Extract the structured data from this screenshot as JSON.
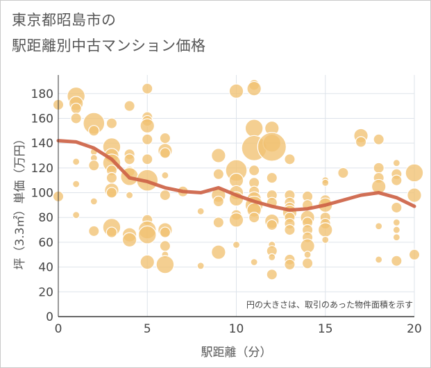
{
  "title_line1": "東京都昭島市の",
  "title_line2": "駅距離別中古マンション価格",
  "chart_data": {
    "type": "scatter",
    "xlabel": "駅距離（分）",
    "ylabel": "坪（3.3㎡）単価（万円）",
    "xlim": [
      0,
      20
    ],
    "ylim": [
      0,
      195
    ],
    "xticks": [
      0,
      5,
      10,
      15,
      20
    ],
    "yticks": [
      0,
      20,
      40,
      60,
      80,
      100,
      120,
      140,
      160,
      180
    ],
    "grid": true,
    "note": "円の大きさは、取引のあった物件面積を示す",
    "bubble_color": "#f1c172",
    "trend_color": "#cd6347",
    "points": [
      {
        "x": 0,
        "y": 171,
        "s": 2
      },
      {
        "x": 0,
        "y": 97,
        "s": 2
      },
      {
        "x": 1,
        "y": 178,
        "s": 4
      },
      {
        "x": 1,
        "y": 172,
        "s": 3
      },
      {
        "x": 1,
        "y": 168,
        "s": 2
      },
      {
        "x": 1,
        "y": 160,
        "s": 2
      },
      {
        "x": 1,
        "y": 125,
        "s": 1
      },
      {
        "x": 1,
        "y": 107,
        "s": 1
      },
      {
        "x": 1,
        "y": 82,
        "s": 1
      },
      {
        "x": 2,
        "y": 156,
        "s": 5
      },
      {
        "x": 2,
        "y": 150,
        "s": 2
      },
      {
        "x": 2,
        "y": 133,
        "s": 1
      },
      {
        "x": 2,
        "y": 128,
        "s": 1
      },
      {
        "x": 2,
        "y": 122,
        "s": 2
      },
      {
        "x": 2,
        "y": 93,
        "s": 1
      },
      {
        "x": 2,
        "y": 69,
        "s": 2
      },
      {
        "x": 3,
        "y": 156,
        "s": 2
      },
      {
        "x": 3,
        "y": 137,
        "s": 4
      },
      {
        "x": 3,
        "y": 130,
        "s": 3
      },
      {
        "x": 3,
        "y": 124,
        "s": 4
      },
      {
        "x": 3,
        "y": 118,
        "s": 2
      },
      {
        "x": 3,
        "y": 112,
        "s": 2
      },
      {
        "x": 3,
        "y": 102,
        "s": 3
      },
      {
        "x": 3,
        "y": 100,
        "s": 2
      },
      {
        "x": 3,
        "y": 72,
        "s": 4
      },
      {
        "x": 3,
        "y": 68,
        "s": 2
      },
      {
        "x": 4,
        "y": 170,
        "s": 2
      },
      {
        "x": 4,
        "y": 131,
        "s": 2
      },
      {
        "x": 4,
        "y": 127,
        "s": 2
      },
      {
        "x": 4,
        "y": 117,
        "s": 2
      },
      {
        "x": 4,
        "y": 113,
        "s": 4
      },
      {
        "x": 4,
        "y": 98,
        "s": 1
      },
      {
        "x": 4,
        "y": 66,
        "s": 3
      },
      {
        "x": 4,
        "y": 62,
        "s": 3
      },
      {
        "x": 5,
        "y": 184,
        "s": 2
      },
      {
        "x": 5,
        "y": 161,
        "s": 2
      },
      {
        "x": 5,
        "y": 158,
        "s": 2
      },
      {
        "x": 5,
        "y": 154,
        "s": 3
      },
      {
        "x": 5,
        "y": 143,
        "s": 2
      },
      {
        "x": 5,
        "y": 127,
        "s": 2
      },
      {
        "x": 5,
        "y": 110,
        "s": 5
      },
      {
        "x": 5,
        "y": 78,
        "s": 2
      },
      {
        "x": 5,
        "y": 70,
        "s": 4
      },
      {
        "x": 5,
        "y": 66,
        "s": 4
      },
      {
        "x": 5,
        "y": 44,
        "s": 3
      },
      {
        "x": 6,
        "y": 144,
        "s": 2
      },
      {
        "x": 6,
        "y": 134,
        "s": 3
      },
      {
        "x": 6,
        "y": 132,
        "s": 2
      },
      {
        "x": 6,
        "y": 114,
        "s": 1
      },
      {
        "x": 6,
        "y": 98,
        "s": 2
      },
      {
        "x": 6,
        "y": 70,
        "s": 3
      },
      {
        "x": 6,
        "y": 68,
        "s": 2
      },
      {
        "x": 6,
        "y": 57,
        "s": 2
      },
      {
        "x": 6,
        "y": 50,
        "s": 1
      },
      {
        "x": 6,
        "y": 42,
        "s": 4
      },
      {
        "x": 7,
        "y": 101,
        "s": 2
      },
      {
        "x": 8,
        "y": 85,
        "s": 1
      },
      {
        "x": 8,
        "y": 41,
        "s": 1
      },
      {
        "x": 9,
        "y": 130,
        "s": 3
      },
      {
        "x": 9,
        "y": 115,
        "s": 2
      },
      {
        "x": 9,
        "y": 98,
        "s": 3
      },
      {
        "x": 9,
        "y": 93,
        "s": 2
      },
      {
        "x": 9,
        "y": 76,
        "s": 2
      },
      {
        "x": 9,
        "y": 52,
        "s": 3
      },
      {
        "x": 10,
        "y": 182,
        "s": 3
      },
      {
        "x": 10,
        "y": 118,
        "s": 5
      },
      {
        "x": 10,
        "y": 110,
        "s": 3
      },
      {
        "x": 10,
        "y": 100,
        "s": 3
      },
      {
        "x": 10,
        "y": 95,
        "s": 3
      },
      {
        "x": 10,
        "y": 82,
        "s": 2
      },
      {
        "x": 10,
        "y": 78,
        "s": 3
      },
      {
        "x": 10,
        "y": 58,
        "s": 1
      },
      {
        "x": 11,
        "y": 187,
        "s": 2
      },
      {
        "x": 11,
        "y": 184,
        "s": 3
      },
      {
        "x": 11,
        "y": 152,
        "s": 4
      },
      {
        "x": 11,
        "y": 136,
        "s": 6
      },
      {
        "x": 11,
        "y": 118,
        "s": 2
      },
      {
        "x": 11,
        "y": 108,
        "s": 2
      },
      {
        "x": 11,
        "y": 101,
        "s": 2
      },
      {
        "x": 11,
        "y": 95,
        "s": 3
      },
      {
        "x": 11,
        "y": 90,
        "s": 4
      },
      {
        "x": 11,
        "y": 86,
        "s": 3
      },
      {
        "x": 11,
        "y": 80,
        "s": 2
      },
      {
        "x": 11,
        "y": 44,
        "s": 1
      },
      {
        "x": 12,
        "y": 152,
        "s": 3
      },
      {
        "x": 12,
        "y": 140,
        "s": 4
      },
      {
        "x": 12,
        "y": 137,
        "s": 7
      },
      {
        "x": 12,
        "y": 112,
        "s": 2
      },
      {
        "x": 12,
        "y": 98,
        "s": 2
      },
      {
        "x": 12,
        "y": 92,
        "s": 2
      },
      {
        "x": 12,
        "y": 77,
        "s": 3
      },
      {
        "x": 12,
        "y": 74,
        "s": 2
      },
      {
        "x": 12,
        "y": 58,
        "s": 1
      },
      {
        "x": 12,
        "y": 53,
        "s": 2
      },
      {
        "x": 12,
        "y": 48,
        "s": 1
      },
      {
        "x": 12,
        "y": 34,
        "s": 2
      },
      {
        "x": 13,
        "y": 127,
        "s": 2
      },
      {
        "x": 13,
        "y": 98,
        "s": 2
      },
      {
        "x": 13,
        "y": 92,
        "s": 2
      },
      {
        "x": 13,
        "y": 88,
        "s": 2
      },
      {
        "x": 13,
        "y": 84,
        "s": 3
      },
      {
        "x": 13,
        "y": 80,
        "s": 2
      },
      {
        "x": 13,
        "y": 75,
        "s": 2
      },
      {
        "x": 13,
        "y": 70,
        "s": 2
      },
      {
        "x": 13,
        "y": 46,
        "s": 2
      },
      {
        "x": 13,
        "y": 42,
        "s": 2
      },
      {
        "x": 14,
        "y": 97,
        "s": 2
      },
      {
        "x": 14,
        "y": 90,
        "s": 2
      },
      {
        "x": 14,
        "y": 80,
        "s": 3
      },
      {
        "x": 14,
        "y": 76,
        "s": 2
      },
      {
        "x": 14,
        "y": 70,
        "s": 2
      },
      {
        "x": 14,
        "y": 64,
        "s": 2
      },
      {
        "x": 14,
        "y": 57,
        "s": 3
      },
      {
        "x": 14,
        "y": 50,
        "s": 1
      },
      {
        "x": 14,
        "y": 43,
        "s": 2
      },
      {
        "x": 15,
        "y": 110,
        "s": 1
      },
      {
        "x": 15,
        "y": 108,
        "s": 1
      },
      {
        "x": 15,
        "y": 94,
        "s": 2
      },
      {
        "x": 15,
        "y": 90,
        "s": 3
      },
      {
        "x": 15,
        "y": 80,
        "s": 2
      },
      {
        "x": 15,
        "y": 75,
        "s": 2
      },
      {
        "x": 15,
        "y": 70,
        "s": 3
      },
      {
        "x": 15,
        "y": 62,
        "s": 1
      },
      {
        "x": 16,
        "y": 116,
        "s": 2
      },
      {
        "x": 17,
        "y": 146,
        "s": 3
      },
      {
        "x": 17,
        "y": 141,
        "s": 2
      },
      {
        "x": 18,
        "y": 143,
        "s": 2
      },
      {
        "x": 18,
        "y": 120,
        "s": 2
      },
      {
        "x": 18,
        "y": 112,
        "s": 2
      },
      {
        "x": 18,
        "y": 105,
        "s": 3
      },
      {
        "x": 18,
        "y": 73,
        "s": 1
      },
      {
        "x": 18,
        "y": 46,
        "s": 1
      },
      {
        "x": 19,
        "y": 124,
        "s": 1
      },
      {
        "x": 19,
        "y": 115,
        "s": 2
      },
      {
        "x": 19,
        "y": 110,
        "s": 2
      },
      {
        "x": 19,
        "y": 88,
        "s": 2
      },
      {
        "x": 19,
        "y": 76,
        "s": 1
      },
      {
        "x": 19,
        "y": 70,
        "s": 1
      },
      {
        "x": 19,
        "y": 64,
        "s": 1
      },
      {
        "x": 19,
        "y": 45,
        "s": 2
      },
      {
        "x": 20,
        "y": 116,
        "s": 4
      },
      {
        "x": 20,
        "y": 98,
        "s": 3
      },
      {
        "x": 20,
        "y": 50,
        "s": 2
      }
    ],
    "trend": {
      "x": [
        0,
        1,
        2,
        3,
        4,
        5,
        6,
        7,
        8,
        9,
        10,
        11,
        12,
        13,
        14,
        15,
        16,
        17,
        18,
        19,
        20
      ],
      "y": [
        142,
        141,
        136,
        127,
        112,
        109,
        104,
        101,
        100,
        104,
        98,
        93,
        89,
        86,
        87,
        90,
        94,
        98,
        100,
        96,
        89
      ]
    }
  }
}
